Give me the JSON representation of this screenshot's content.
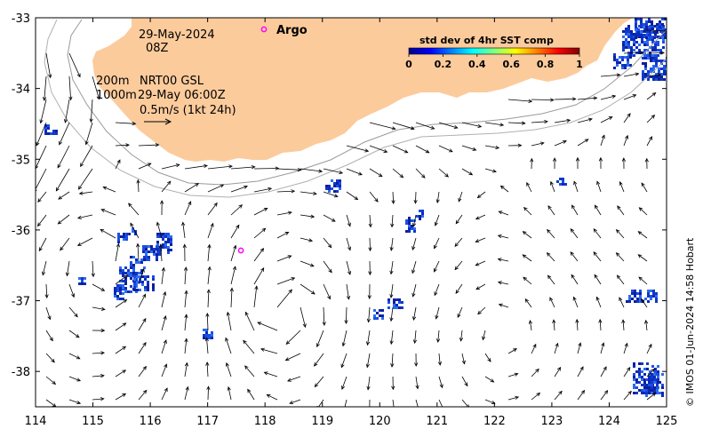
{
  "map": {
    "x_ticks": [
      "114",
      "115",
      "116",
      "117",
      "118",
      "119",
      "120",
      "121",
      "122",
      "123",
      "124",
      "125"
    ],
    "y_ticks": [
      "-33",
      "-34",
      "-35",
      "-36",
      "-37",
      "-38"
    ],
    "lon_range": [
      114,
      125
    ],
    "lat_range": [
      -38.5,
      -33
    ],
    "date_label": "29-May-2024",
    "time_label": "08Z",
    "contour_label_200": "200m",
    "contour_label_1000": "1000m",
    "product_label": "NRT00 GSL",
    "product_time": "29-May 06:00Z",
    "scale_label": "0.5m/s (1kt 24h)",
    "argo_label": "Argo",
    "argo_float": {
      "lon": 117.58,
      "lat": -36.29
    },
    "land_color": "#FCCB9C",
    "ocean_color": "#FFFFFF",
    "argo_color": "#FF00FF"
  },
  "colorbar": {
    "title": "std dev of 4hr SST comp",
    "ticks": [
      "0",
      "0.2",
      "0.4",
      "0.6",
      "0.8",
      "1"
    ],
    "range": [
      0,
      1
    ]
  },
  "credit": "© IMOS 01-Jun-2024 14:58 Hobart"
}
